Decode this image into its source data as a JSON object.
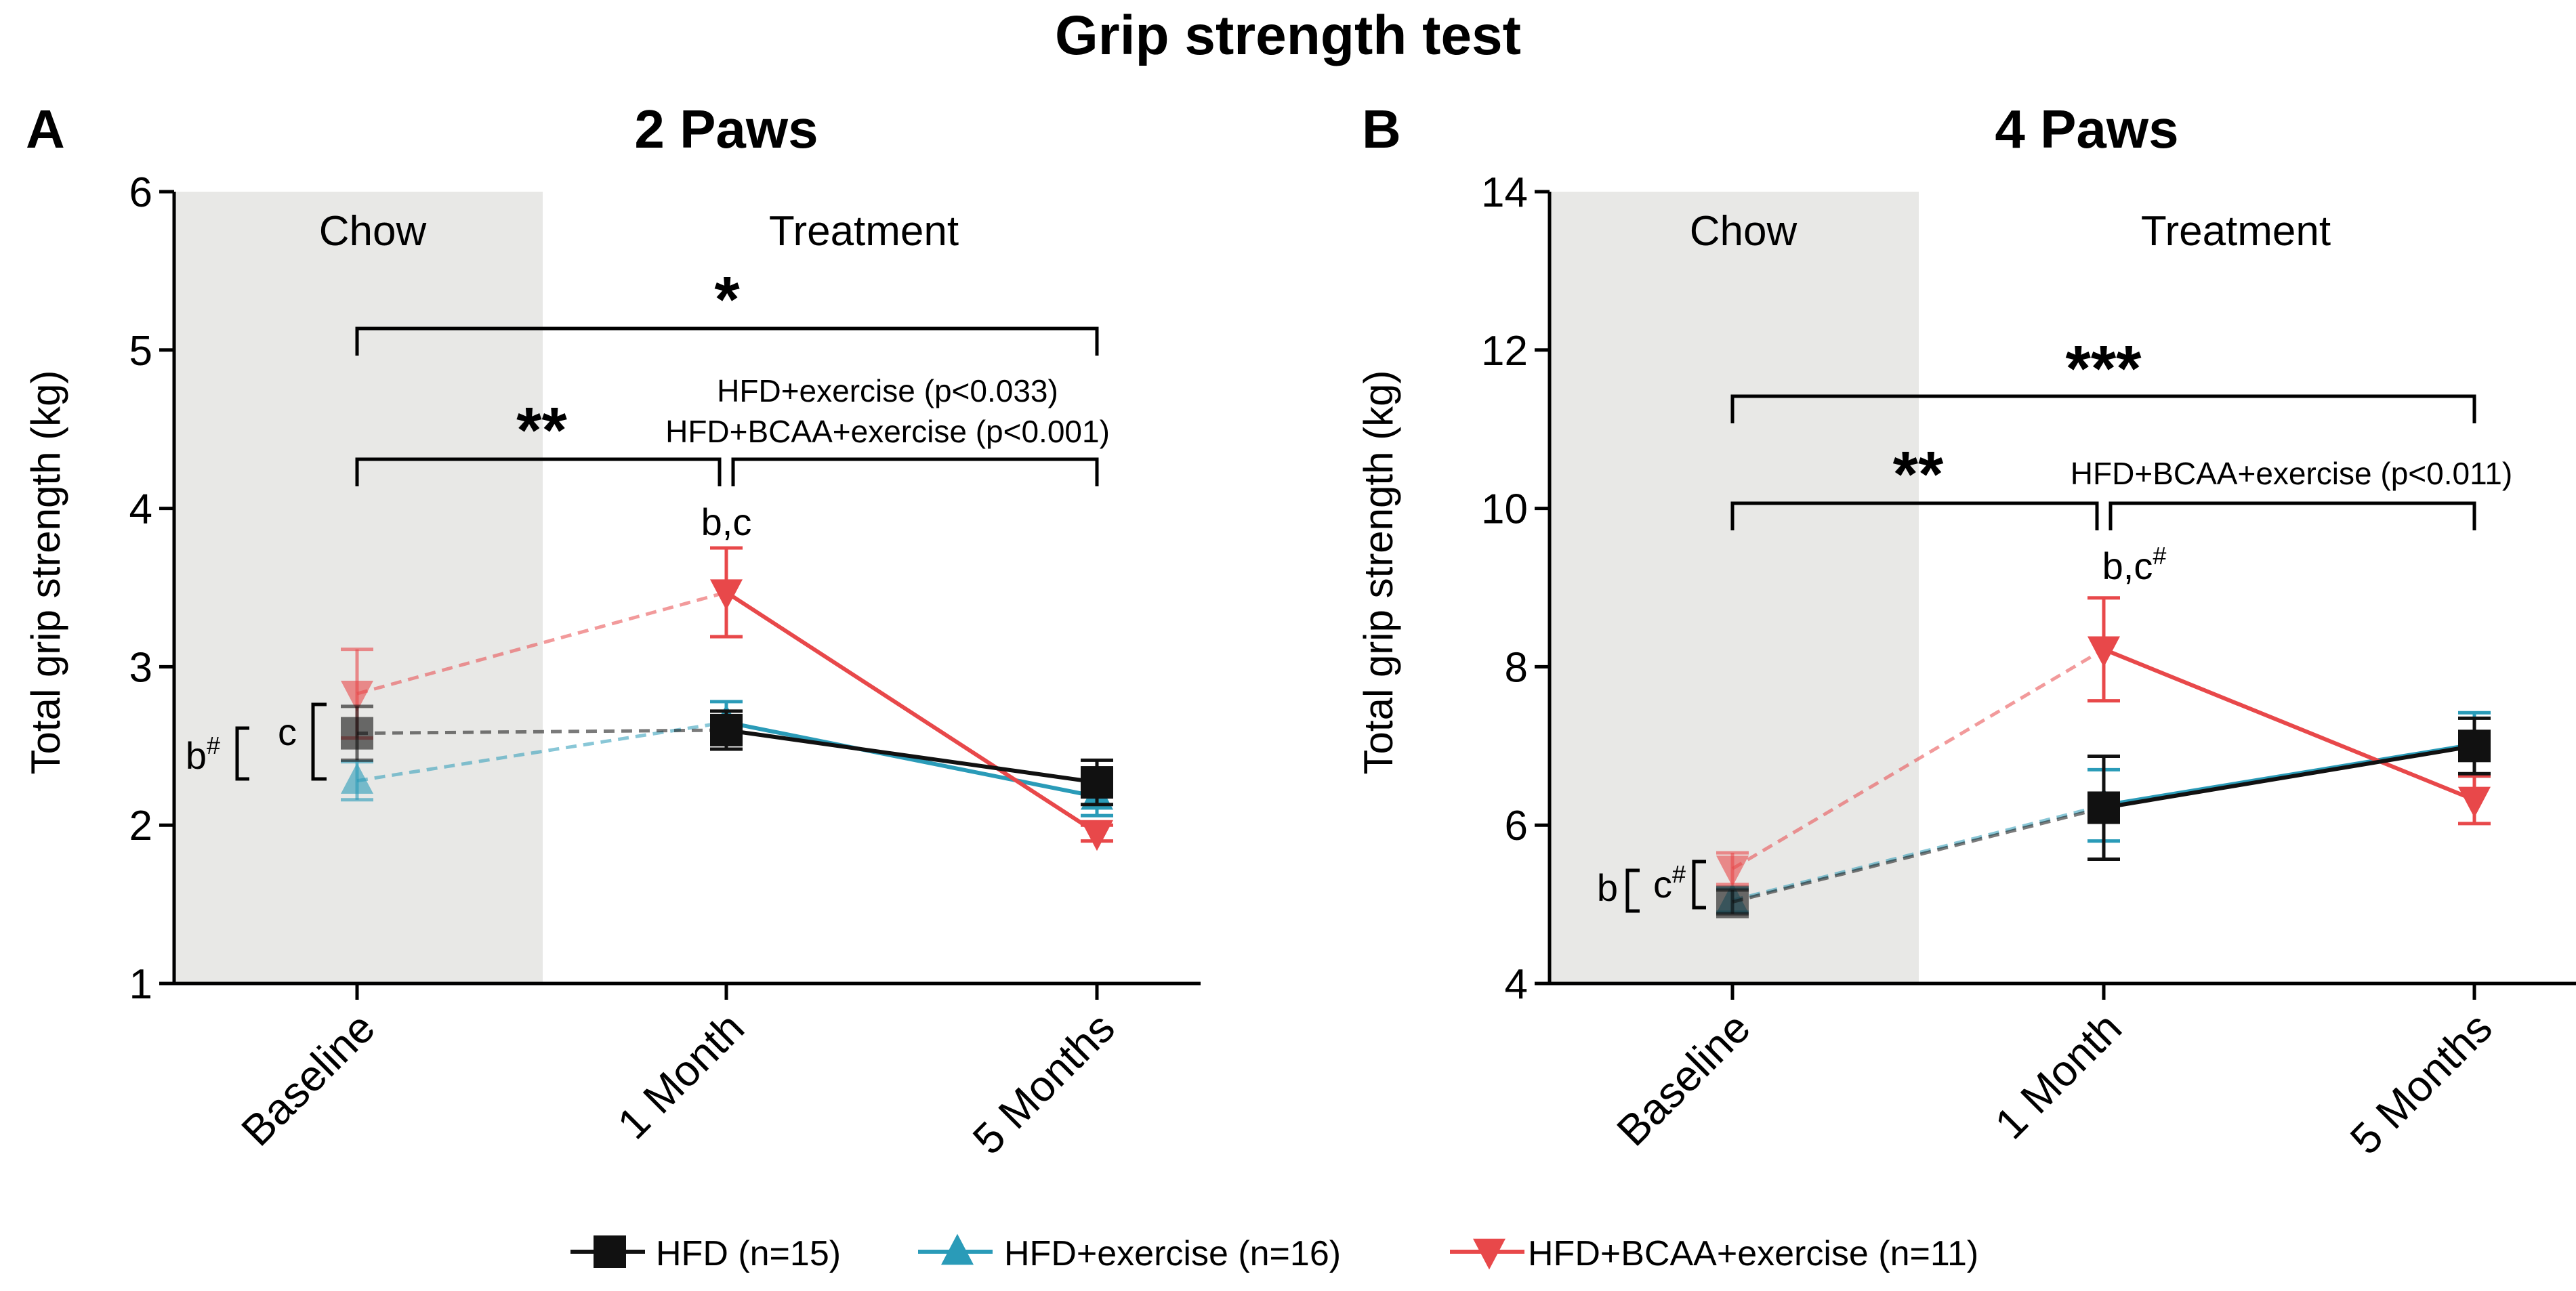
{
  "figure_title": "Grip strength test",
  "colors": {
    "HFD": "#111111",
    "HFD+exercise": "#2a9bb8",
    "HFD+BCAA+exercise": "#e8484a",
    "chow_shade": "#e8e8e6"
  },
  "legend": [
    {
      "key": "HFD",
      "label": "HFD (n=15)",
      "marker": "square"
    },
    {
      "key": "HFD+exercise",
      "label": "HFD+exercise (n=16)",
      "marker": "triangle-up"
    },
    {
      "key": "HFD+BCAA+exercise",
      "label": "HFD+BCAA+exercise (n=11)",
      "marker": "triangle-down"
    }
  ],
  "chart_data": [
    {
      "panel": "A",
      "type": "line",
      "title": "2 Paws",
      "xlabel": "",
      "ylabel": "Total grip strength (kg)",
      "categories": [
        "Baseline",
        "1 Month",
        "5 Months"
      ],
      "ylim": [
        1,
        6
      ],
      "yticks": [
        1,
        2,
        3,
        4,
        5,
        6
      ],
      "phases": [
        "Chow",
        "Treatment"
      ],
      "series": [
        {
          "name": "HFD",
          "values": [
            2.58,
            2.6,
            2.27
          ],
          "errors": [
            0.17,
            0.12,
            0.14
          ]
        },
        {
          "name": "HFD+exercise",
          "values": [
            2.28,
            2.65,
            2.18
          ],
          "errors": [
            0.12,
            0.13,
            0.12
          ]
        },
        {
          "name": "HFD+BCAA+exercise",
          "values": [
            2.83,
            3.47,
            1.95
          ],
          "errors": [
            0.28,
            0.28,
            0.05
          ]
        }
      ],
      "significance": [
        {
          "label": "*",
          "text": ""
        },
        {
          "label": "**",
          "text": ""
        },
        {
          "label": "",
          "text": "HFD+exercise (p<0.033)"
        },
        {
          "label": "",
          "text": "HFD+BCAA+exercise (p<0.001)"
        }
      ],
      "letter_annotations": [
        "b,c",
        "c",
        "b"
      ],
      "letter_superscripts": [
        "#"
      ]
    },
    {
      "panel": "B",
      "type": "line",
      "title": "4 Paws",
      "xlabel": "",
      "ylabel": "Total grip strength (kg)",
      "categories": [
        "Baseline",
        "1 Month",
        "5 Months"
      ],
      "ylim": [
        4,
        14
      ],
      "yticks": [
        4,
        6,
        8,
        10,
        12,
        14
      ],
      "phases": [
        "Chow",
        "Treatment"
      ],
      "series": [
        {
          "name": "HFD",
          "values": [
            5.03,
            6.22,
            7.0
          ],
          "errors": [
            0.15,
            0.65,
            0.35
          ]
        },
        {
          "name": "HFD+exercise",
          "values": [
            5.05,
            6.25,
            7.02
          ],
          "errors": [
            0.15,
            0.45,
            0.4
          ]
        },
        {
          "name": "HFD+BCAA+exercise",
          "values": [
            5.45,
            8.22,
            6.32
          ],
          "errors": [
            0.2,
            0.65,
            0.3
          ]
        }
      ],
      "significance": [
        {
          "label": "***",
          "text": ""
        },
        {
          "label": "**",
          "text": ""
        },
        {
          "label": "",
          "text": "HFD+BCAA+exercise (p<0.011)"
        }
      ],
      "letter_annotations": [
        "b,c",
        "b",
        "c"
      ],
      "letter_superscripts": [
        "#"
      ]
    }
  ]
}
